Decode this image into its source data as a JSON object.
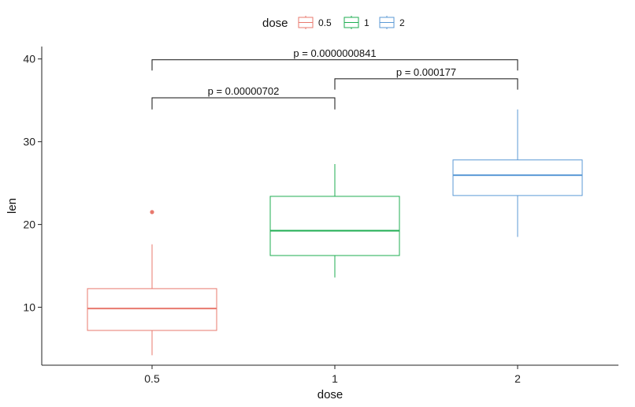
{
  "chart_data": {
    "type": "boxplot",
    "xlabel": "dose",
    "ylabel": "len",
    "categories": [
      "0.5",
      "1",
      "2"
    ],
    "ylim": [
      3,
      41.5
    ],
    "yticks": [
      10,
      20,
      30,
      40
    ],
    "grid": false,
    "legend": {
      "title": "dose",
      "position": "top",
      "entries": [
        "0.5",
        "1",
        "2"
      ]
    },
    "colors": [
      "#e8796e",
      "#1fad52",
      "#5b9ad6"
    ],
    "boxes": [
      {
        "category": "0.5",
        "whisker_low": 4.2,
        "q1": 7.2,
        "median": 9.85,
        "q3": 12.25,
        "whisker_high": 17.6,
        "outliers": [
          21.5
        ]
      },
      {
        "category": "1",
        "whisker_low": 13.6,
        "q1": 16.25,
        "median": 19.25,
        "q3": 23.4,
        "whisker_high": 27.3,
        "outliers": []
      },
      {
        "category": "2",
        "whisker_low": 18.5,
        "q1": 23.5,
        "median": 25.95,
        "q3": 27.8,
        "whisker_high": 33.9,
        "outliers": []
      }
    ],
    "comparisons": [
      {
        "from": "0.5",
        "to": "1",
        "label": "p = 0.00000702",
        "y_bar": 35.3,
        "y_tip": 33.9
      },
      {
        "from": "1",
        "to": "2",
        "label": "p = 0.000177",
        "y_bar": 37.6,
        "y_tip": 36.3
      },
      {
        "from": "0.5",
        "to": "2",
        "label": "p = 0.0000000841",
        "y_bar": 39.9,
        "y_tip": 38.6
      }
    ]
  }
}
